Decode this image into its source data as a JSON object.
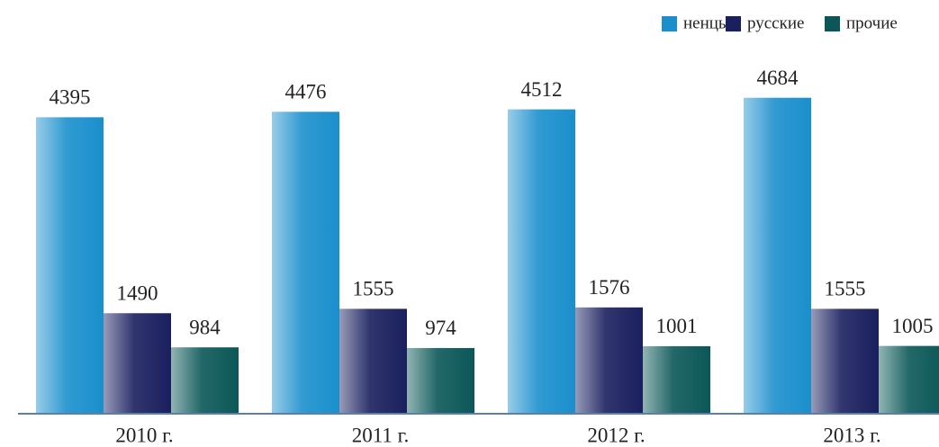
{
  "chart_data": {
    "type": "bar",
    "categories": [
      "2010 г.",
      "2011 г.",
      "2012 г.",
      "2013 г."
    ],
    "series": [
      {
        "name": "ненцы",
        "color": "#1a8fcc",
        "values": [
          4395,
          4476,
          4512,
          4684
        ]
      },
      {
        "name": "русские",
        "color": "#1a1f5e",
        "values": [
          1490,
          1555,
          1576,
          1555
        ]
      },
      {
        "name": "прочие",
        "color": "#0b5757",
        "values": [
          984,
          974,
          1001,
          1005
        ]
      }
    ],
    "ylim": [
      0,
      6000
    ]
  }
}
